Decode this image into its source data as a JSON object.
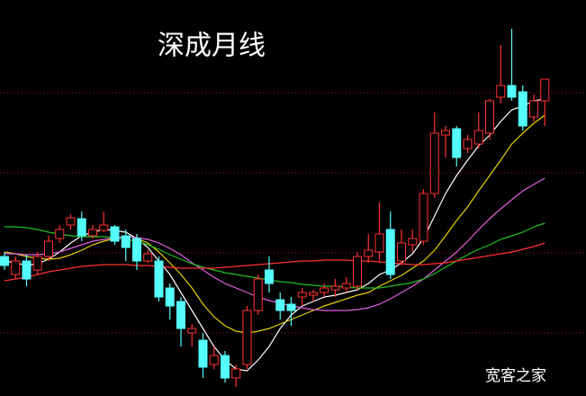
{
  "chart_data": {
    "type": "candlestick",
    "title": "深成月线",
    "watermark": "宽客之家",
    "categories": [
      null,
      null,
      null,
      null,
      null,
      null,
      null,
      null,
      null,
      null,
      null,
      null,
      null,
      null,
      null,
      null,
      null,
      null,
      null,
      null,
      null,
      null,
      null,
      null,
      null,
      null,
      null,
      null,
      null,
      null,
      null,
      null,
      null,
      null,
      null,
      null,
      null,
      null,
      null,
      null,
      null,
      null,
      null,
      null,
      null,
      null,
      null,
      null,
      null,
      null
    ],
    "open": [
      155,
      135,
      150,
      140,
      155,
      175,
      190,
      197,
      178,
      184,
      188,
      178,
      175,
      150,
      150,
      120,
      105,
      70,
      62,
      35,
      45,
      20,
      35,
      95,
      140,
      107,
      102,
      110,
      112,
      115,
      118,
      120,
      122,
      155,
      160,
      185,
      150,
      168,
      172,
      225,
      290,
      297,
      275,
      280,
      292,
      332,
      345,
      338,
      310,
      328
    ],
    "close": [
      145,
      150,
      130,
      155,
      172,
      185,
      198,
      178,
      185,
      190,
      172,
      165,
      150,
      158,
      110,
      100,
      75,
      75,
      32,
      45,
      20,
      30,
      95,
      130,
      125,
      95,
      95,
      115,
      115,
      120,
      122,
      125,
      155,
      162,
      180,
      135,
      170,
      175,
      225,
      292,
      295,
      265,
      285,
      295,
      328,
      345,
      332,
      300,
      328,
      352
    ],
    "high": [
      160,
      155,
      157,
      160,
      178,
      190,
      202,
      205,
      190,
      205,
      190,
      185,
      180,
      162,
      155,
      125,
      110,
      80,
      70,
      55,
      50,
      35,
      100,
      135,
      155,
      115,
      110,
      120,
      118,
      125,
      130,
      132,
      160,
      180,
      215,
      205,
      185,
      185,
      230,
      315,
      300,
      300,
      290,
      315,
      330,
      390,
      408,
      345,
      335,
      352
    ],
    "low": [
      140,
      130,
      122,
      135,
      150,
      170,
      185,
      172,
      175,
      182,
      168,
      150,
      140,
      148,
      105,
      85,
      55,
      55,
      20,
      30,
      15,
      10,
      30,
      90,
      115,
      85,
      78,
      100,
      105,
      110,
      110,
      115,
      118,
      148,
      150,
      130,
      145,
      160,
      168,
      220,
      265,
      255,
      270,
      275,
      285,
      325,
      328,
      295,
      305,
      300
    ],
    "up_color": "#ff3232",
    "down_color": "#54fcfc",
    "lines": [
      {
        "color": "#ffffff",
        "values": [
          150,
          148,
          145,
          147,
          152,
          160,
          170,
          178,
          182,
          185,
          184,
          182,
          175,
          165,
          150,
          135,
          115,
          95,
          75,
          55,
          40,
          30,
          28,
          40,
          55,
          75,
          90,
          100,
          105,
          110,
          112,
          115,
          118,
          125,
          135,
          140,
          148,
          158,
          175,
          200,
          225,
          245,
          262,
          278,
          290,
          305,
          318,
          322,
          328,
          330
        ]
      },
      {
        "color": "#e6d000",
        "values": [
          160,
          158,
          155,
          153,
          152,
          153,
          157,
          162,
          168,
          172,
          175,
          178,
          175,
          170,
          160,
          148,
          135,
          120,
          102,
          88,
          78,
          72,
          70,
          72,
          75,
          80,
          85,
          90,
          95,
          100,
          104,
          108,
          112,
          115,
          122,
          128,
          134,
          142,
          150,
          162,
          178,
          195,
          210,
          228,
          245,
          262,
          280,
          292,
          303,
          312
        ]
      },
      {
        "color": "#e060e0",
        "values": [
          158,
          158,
          157,
          157,
          158,
          160,
          164,
          168,
          172,
          174,
          176,
          177,
          176,
          174,
          170,
          164,
          157,
          148,
          140,
          132,
          125,
          120,
          115,
          110,
          106,
          103,
          100,
          98,
          96,
          95,
          95,
          95,
          96,
          98,
          102,
          108,
          115,
          122,
          130,
          140,
          150,
          160,
          172,
          185,
          197,
          208,
          218,
          228,
          235,
          242
        ]
      },
      {
        "color": "#20c020",
        "values": [
          188,
          188,
          187,
          185,
          182,
          180,
          178,
          177,
          177,
          177,
          176,
          174,
          172,
          168,
          163,
          157,
          152,
          147,
          143,
          140,
          137,
          135,
          133,
          131,
          129,
          127,
          126,
          124,
          123,
          122,
          122,
          121,
          120,
          120,
          120,
          122,
          124,
          126,
          130,
          136,
          143,
          150,
          157,
          163,
          168,
          174,
          178,
          182,
          188,
          192
        ]
      },
      {
        "color": "#ff3030",
        "values": [
          128,
          130,
          132,
          135,
          138,
          140,
          142,
          144,
          145,
          146,
          146,
          146,
          145,
          145,
          144,
          143,
          142,
          142,
          142,
          142,
          143,
          144,
          145,
          146,
          147,
          148,
          149,
          150,
          150,
          151,
          151,
          151,
          150,
          150,
          149,
          148,
          147,
          146,
          146,
          147,
          148,
          150,
          152,
          154,
          156,
          158,
          160,
          163,
          166,
          170
        ]
      }
    ],
    "ylim": [
      0,
      440
    ],
    "yticks": [
      70,
      159,
      248,
      337
    ],
    "grid": true,
    "grid_color": "#a02020"
  }
}
